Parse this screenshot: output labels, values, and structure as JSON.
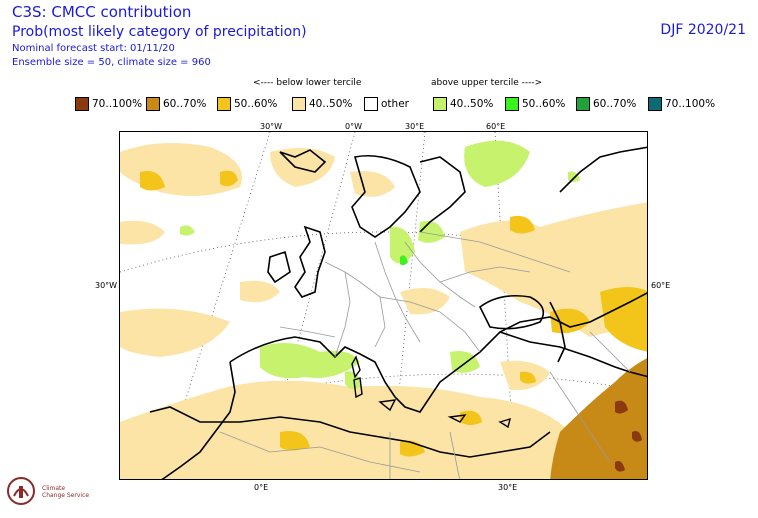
{
  "header": {
    "title": "C3S: CMCC contribution",
    "subtitle": "Prob(most likely category of precipitation)",
    "nominal_start": "Nominal forecast start: 01/11/20",
    "ensemble": "Ensemble size = 50, climate size = 960",
    "season": "DJF 2020/21"
  },
  "legend": {
    "below_heading": "<---- below lower tercile",
    "above_heading": "above upper tercile ---->",
    "items": [
      {
        "label": "70..100%",
        "color": "#8b3a0f"
      },
      {
        "label": "60..70%",
        "color": "#c88a17"
      },
      {
        "label": "50..60%",
        "color": "#f3c51b"
      },
      {
        "label": "40..50%",
        "color": "#fbe4a6"
      },
      {
        "label": "other",
        "color": "#ffffff"
      },
      {
        "label": "40..50%",
        "color": "#c6f26e"
      },
      {
        "label": "50..60%",
        "color": "#3df01f"
      },
      {
        "label": "60..70%",
        "color": "#1fa33a"
      },
      {
        "label": "70..100%",
        "color": "#0e6a72"
      }
    ]
  },
  "map_labels": {
    "lon_top": [
      "30°W",
      "0°W",
      "30°E",
      "60°E"
    ],
    "lon_bottom": [
      "0°E",
      "30°E"
    ],
    "lat_left": "30°W",
    "lat_right": "60°E"
  },
  "logo": {
    "line1": "Climate",
    "line2": "Change Service"
  },
  "colors": {
    "text_blue": "#1a1ad8",
    "coast": "#000000",
    "border": "#999999"
  }
}
